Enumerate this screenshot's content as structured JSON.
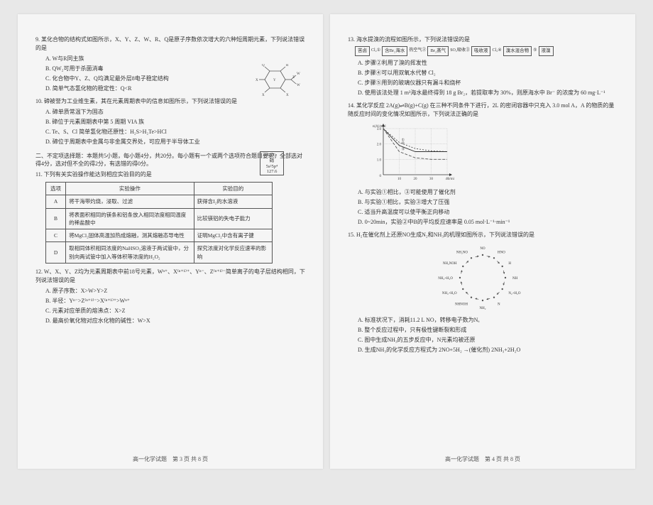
{
  "leftPage": {
    "q9": {
      "stem": "9. 某化合物的结构式如图所示，X、Y、Z、W、R、Q是原子序数依次增大的六种短周期元素，下列说法错误的是",
      "A": "A. W与R同主族",
      "B": "B. QW₂可用于杀菌消毒",
      "C": "C. 化合物中Y、Z、Q均满足最外层8电子稳定结构",
      "D": "D. 简单气态氢化物的稳定性：Q<R"
    },
    "q10": {
      "stem": "10. 碲被誉为工业维生素，其在元素周期表中的信息如图所示，下列说法错误的是",
      "A": "A. 碲单质常温下为固态",
      "B": "B. 碲位于元素周期表中第 5 周期 VIA 族",
      "C": "C. Te、S、Cl 简单氢化物还原性：H₂S>H₂Te>HCl",
      "D": "D. 碲位于周期表中金属与非金属交界处，可应用于半导体工业"
    },
    "teBox": {
      "num": "52",
      "sym": "Te",
      "name": "碲",
      "cfg": "5s²5p⁴",
      "mass": "127.6"
    },
    "section2": "二、不定项选择题：本题共5小题，每小题4分，共20分。每小题有一个或两个选项符合题目要求，全部选对得4分，选对但不全的得2分，有选错的得0分。",
    "q11": {
      "stem": "11. 下列有关实验操作能达到相应实验目的的是",
      "headers": {
        "opt": "选项",
        "op": "实验操作",
        "goal": "实验目的"
      },
      "rows": [
        {
          "opt": "A",
          "op": "将干海带灼烧，浸取、过滤",
          "goal": "获得含I₂的水溶液"
        },
        {
          "opt": "B",
          "op": "将表面积相同的镁条和铝条放入相同浓度相同温度的稀盐酸中",
          "goal": "比较镁铝的失电子能力"
        },
        {
          "opt": "C",
          "op": "将MgCl₂固体高温加热成熔融，测其熔融态导电性",
          "goal": "证明MgCl₂中含有离子键"
        },
        {
          "opt": "D",
          "op": "取相同体积相同浓度的NaHSO₃溶液于两试管中，分别向两试管中加入等体积等浓度的H₂O₂",
          "goal": "探究浓度对化学反应速率的影响"
        }
      ]
    },
    "q12": {
      "stem": "12. W、X、Y、Z均为元素周期表中前18号元素，Wⁿ⁺、X⁽ⁿ⁺¹⁾⁺、Yⁿ⁻、Z⁽ⁿ⁺¹⁾⁻简单离子的电子层结构相同，下列说法错误的是",
      "A": "A. 原子序数：X>W>Y>Z",
      "B": "B. 半径：Yⁿ⁻>Z⁽ⁿ⁺¹⁾⁻>X⁽ⁿ⁺¹⁾⁺>Wⁿ⁺",
      "C": "C. 元素对应单质的熔沸点：X>Z",
      "D": "D. 最高价氧化物对应水化物的碱性：W>X"
    },
    "footer": "高一化学试题　第 3 页 共 8 页"
  },
  "rightPage": {
    "q13": {
      "stem": "13. 海水提溴的流程如图所示，下列说法错误的是",
      "flow": [
        "苦卤",
        "Cl₂①",
        "含Br₂海水",
        "热空气②",
        "Br₂蒸气",
        "SO₂吸收③",
        "吸收液",
        "Cl₂④",
        "溴水混合物",
        "⑤",
        "液溴"
      ],
      "A": "A. 步骤②利用了溴的挥发性",
      "B": "B. 步骤④可以用双氧水代替 Cl₂",
      "C": "C. 步骤⑤用到的玻璃仪器只有漏斗和烧杯",
      "D": "D. 使用该法处理 1 m³海水最终得到 18 g Br₂，若提取率为 30%，则原海水中 Br⁻ 的浓度为 60 mg·L⁻¹"
    },
    "q14": {
      "stem": "14. 某化学反应 2A(g)⇌B(g)+C(g) 在三种不同条件下进行，2L 的密闭容器中只充入 3.0 mol A，A 的物质的量随反应时间的变化情况如图所示，下列说法正确的是",
      "chart": {
        "ylabel": "n(A)/mol",
        "xlabel": "t/min",
        "ylim": [
          0,
          3.0
        ],
        "xlim": [
          0,
          40
        ],
        "ytick": [
          1.0,
          2.0,
          3.0
        ],
        "xtick": [
          10,
          20,
          30,
          40
        ],
        "series": [
          {
            "label": "①",
            "dash": "2,2",
            "color": "#555",
            "pts": [
              [
                0,
                3.0
              ],
              [
                10,
                2.1
              ],
              [
                20,
                1.7
              ],
              [
                30,
                1.55
              ],
              [
                40,
                1.5
              ]
            ]
          },
          {
            "label": "②",
            "dash": "none",
            "color": "#333",
            "pts": [
              [
                0,
                3.0
              ],
              [
                10,
                1.9
              ],
              [
                20,
                1.5
              ],
              [
                30,
                1.5
              ],
              [
                40,
                1.5
              ]
            ]
          },
          {
            "label": "③",
            "dash": "4,2",
            "color": "#555",
            "pts": [
              [
                0,
                3.0
              ],
              [
                10,
                1.5
              ],
              [
                20,
                1.1
              ],
              [
                30,
                1.0
              ],
              [
                40,
                1.0
              ]
            ]
          }
        ],
        "grid_color": "#aaa"
      },
      "A": "A. 与实验①相比，③可能使用了催化剂",
      "B": "B. 与实验①相比，实验③增大了压强",
      "C": "C. 适当升高温度可以使平衡正向移动",
      "D": "D. 0~20min，实验②中B的平均反应速率是 0.05 mol·L⁻¹·min⁻¹"
    },
    "q15": {
      "stem": "15. H₂在催化剂上还原NO生成N₂和NH₃的机理如图所示，下列说法错误的是",
      "cycle": {
        "nodes": [
          "NO",
          "HNO",
          "H",
          "NH",
          "N₂+H₂O",
          "N",
          "NH₂",
          "NHNOH",
          "NH₂+H₂O",
          "NH₃+H₂O",
          "NH₂NOH",
          "NH₂NO"
        ],
        "color": "#555"
      },
      "A": "A. 标准状况下，消耗11.2 L NO，转移电子数为Nₐ",
      "B": "B. 整个反应过程中，只有极性键断裂和形成",
      "C": "C. 图中生成NH₃的五步反应中，N元素均被还原",
      "D": "D. 生成NH₃的化学反应方程式为 2NO+5H₂ →(催化剂) 2NH₃+2H₂O"
    },
    "footer": "高一化学试题　第 4 页 共 8 页"
  }
}
